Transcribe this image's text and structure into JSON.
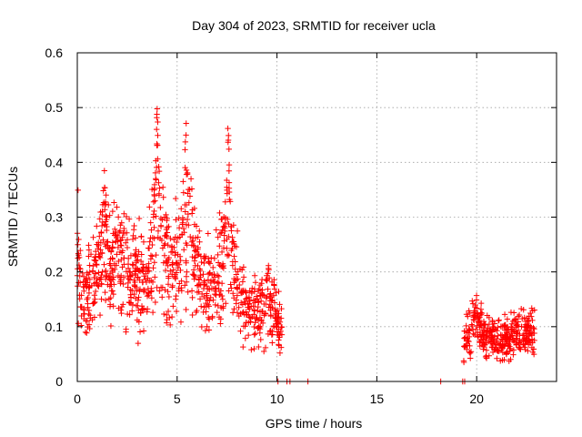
{
  "chart_data": {
    "type": "scatter",
    "title": "Day 304 of 2023, SRMTID for receiver ucla",
    "xlabel": "GPS time / hours",
    "ylabel": "SRMTID / TECUs",
    "xlim": [
      0,
      24
    ],
    "ylim": [
      0,
      0.6
    ],
    "x_ticks": [
      0,
      5,
      10,
      15,
      20
    ],
    "y_ticks": [
      0,
      0.1,
      0.2,
      0.3,
      0.4,
      0.5,
      0.6
    ],
    "x_tick_labels": [
      "0",
      "5",
      "10",
      "15",
      "20"
    ],
    "y_tick_labels": [
      "0",
      "0.1",
      "0.2",
      "0.3",
      "0.4",
      "0.5",
      "0.6"
    ],
    "grid": true,
    "marker": "plus",
    "marker_color": "#ff0000",
    "segments": [
      {
        "x_start": 0.0,
        "x_end": 10.25,
        "n": 1050,
        "seed": 11
      },
      {
        "x_start": 19.35,
        "x_end": 22.9,
        "n": 380,
        "seed": 29
      }
    ],
    "trend": [
      [
        0.0,
        0.23
      ],
      [
        0.3,
        0.14
      ],
      [
        0.7,
        0.16
      ],
      [
        1.0,
        0.21
      ],
      [
        1.3,
        0.24
      ],
      [
        1.6,
        0.2
      ],
      [
        2.0,
        0.24
      ],
      [
        2.4,
        0.22
      ],
      [
        2.8,
        0.2
      ],
      [
        3.2,
        0.18
      ],
      [
        3.6,
        0.2
      ],
      [
        4.0,
        0.26
      ],
      [
        4.4,
        0.24
      ],
      [
        4.8,
        0.18
      ],
      [
        5.2,
        0.24
      ],
      [
        5.6,
        0.26
      ],
      [
        6.0,
        0.2
      ],
      [
        6.4,
        0.17
      ],
      [
        6.8,
        0.16
      ],
      [
        7.2,
        0.2
      ],
      [
        7.6,
        0.24
      ],
      [
        8.0,
        0.18
      ],
      [
        8.4,
        0.13
      ],
      [
        8.8,
        0.13
      ],
      [
        9.2,
        0.14
      ],
      [
        9.6,
        0.15
      ],
      [
        10.0,
        0.11
      ],
      [
        10.25,
        0.1
      ],
      [
        19.35,
        0.07
      ],
      [
        19.7,
        0.09
      ],
      [
        20.0,
        0.1
      ],
      [
        20.5,
        0.085
      ],
      [
        21.0,
        0.075
      ],
      [
        21.5,
        0.08
      ],
      [
        22.0,
        0.09
      ],
      [
        22.5,
        0.085
      ],
      [
        22.9,
        0.09
      ]
    ],
    "spikes": [
      {
        "x": 1.35,
        "peak": 0.4,
        "width": 0.2
      },
      {
        "x": 4.0,
        "peak": 0.51,
        "width": 0.22
      },
      {
        "x": 5.45,
        "peak": 0.49,
        "width": 0.22
      },
      {
        "x": 7.55,
        "peak": 0.48,
        "width": 0.22
      },
      {
        "x": 19.95,
        "peak": 0.15,
        "width": 0.2
      }
    ],
    "baseline_points": [
      {
        "x": 10.05,
        "y": 0
      },
      {
        "x": 10.5,
        "y": 0
      },
      {
        "x": 10.65,
        "y": 0
      },
      {
        "x": 11.55,
        "y": 0
      },
      {
        "x": 18.2,
        "y": 0
      },
      {
        "x": 19.3,
        "y": 0
      },
      {
        "x": 19.4,
        "y": 0
      }
    ]
  }
}
